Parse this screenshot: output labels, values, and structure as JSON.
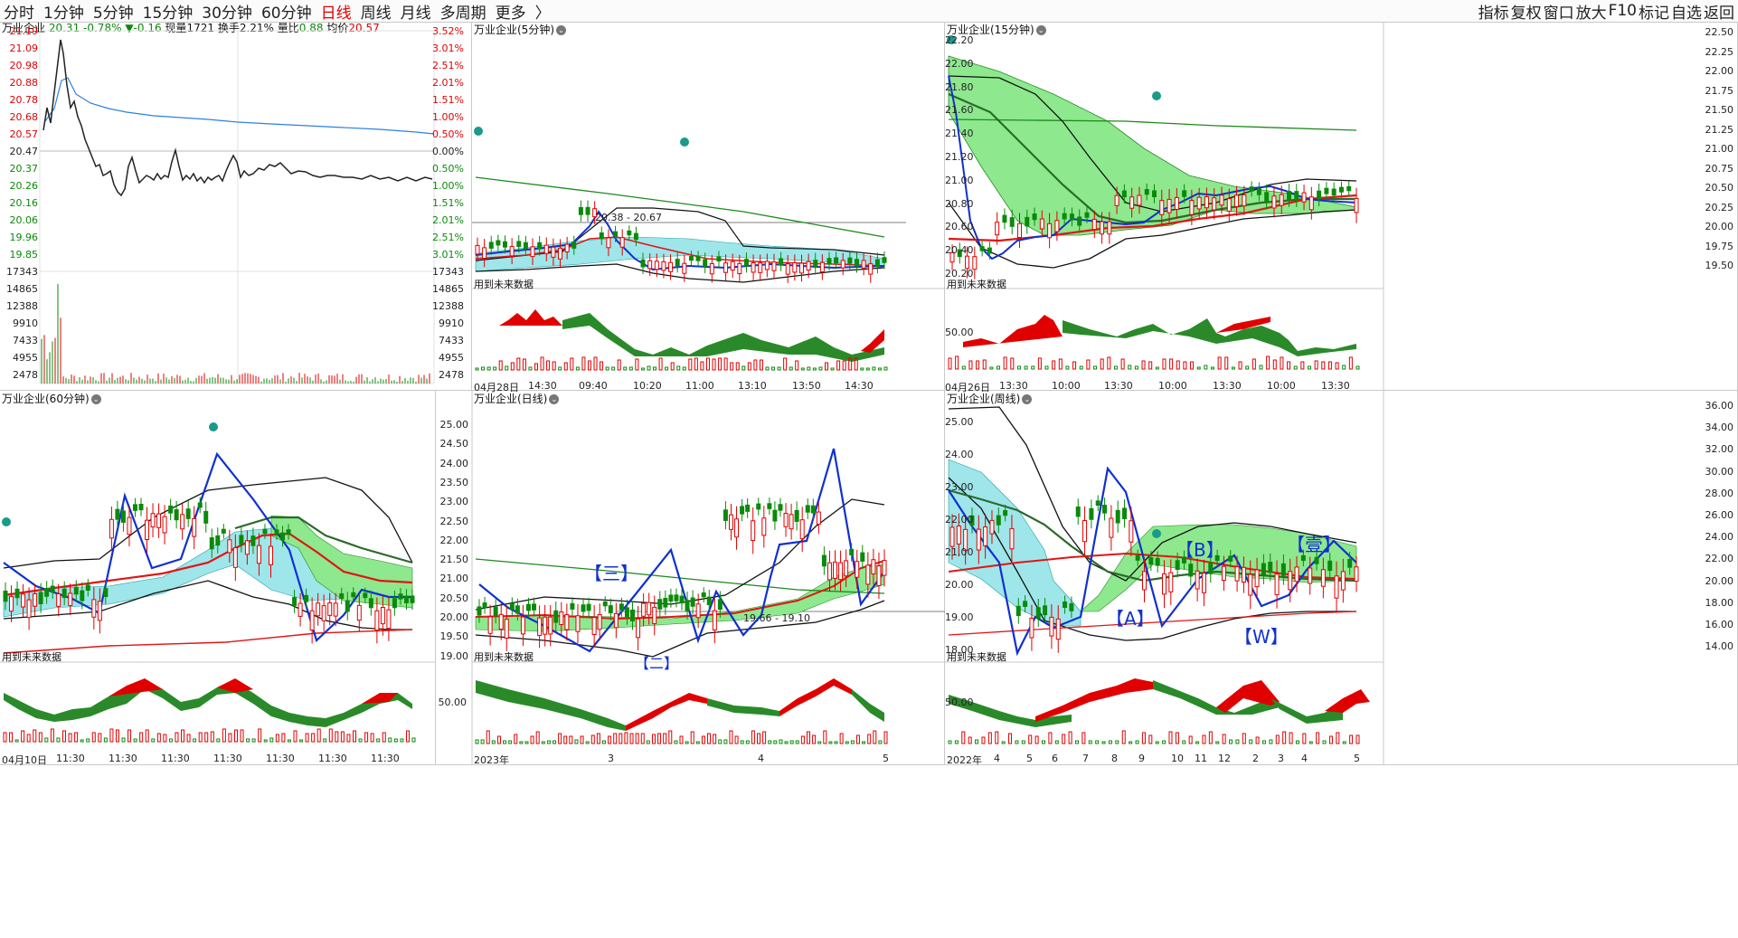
{
  "top_tabs": [
    "分时",
    "1分钟",
    "5分钟",
    "15分钟",
    "30分钟",
    "60分钟",
    "日线",
    "周线",
    "月线",
    "多周期",
    "更多",
    "〉"
  ],
  "active_tab": "日线",
  "tools": [
    "指标",
    "复权",
    "窗口",
    "放大",
    "F10",
    "标记",
    "自选",
    "返回"
  ],
  "intraday": {
    "stock": "万业企业",
    "price": "20.31",
    "change_pct": "-0.78%",
    "change": "▼-0.16",
    "volume_label": "现量",
    "volume": "1721",
    "turnover_label": "换手",
    "turnover": "2.21%",
    "ratio_label": "量比",
    "ratio": "0.88",
    "avg_label": "均价",
    "avg": "20.57",
    "price_ticks": [
      "21.19",
      "21.09",
      "20.98",
      "20.88",
      "20.78",
      "20.68",
      "20.57",
      "20.47",
      "20.37",
      "20.26",
      "20.16",
      "20.06",
      "19.96",
      "19.85"
    ],
    "pct_ticks": [
      "3.52%",
      "3.01%",
      "2.51%",
      "2.01%",
      "1.51%",
      "1.00%",
      "0.50%",
      "0.00%",
      "0.50%",
      "1.00%",
      "1.51%",
      "2.01%",
      "2.51%",
      "3.01%"
    ],
    "vol_ticks": [
      "17343",
      "14865",
      "12388",
      "9910",
      "7433",
      "4955",
      "2478"
    ]
  },
  "p5": {
    "title": "万业企业(5分钟)",
    "hint": "用到未来数据",
    "range_label": "20.38 - 20.67",
    "x_labels": [
      "04月28日",
      "14:30",
      "09:40",
      "10:20",
      "11:00",
      "13:10",
      "13:50",
      "14:30"
    ]
  },
  "p15": {
    "title": "万业企业(15分钟)",
    "hint": "用到未来数据",
    "left_ticks": [
      "22.20",
      "22.00",
      "21.80",
      "21.60",
      "21.40",
      "21.20",
      "21.00",
      "20.80",
      "20.60",
      "20.40",
      "20.20"
    ],
    "right_ticks": [
      "22.50",
      "22.25",
      "22.00",
      "21.75",
      "21.50",
      "21.25",
      "21.00",
      "20.75",
      "20.50",
      "20.25",
      "20.00",
      "19.75",
      "19.50"
    ],
    "osc_tick": "50.00",
    "x_labels": [
      "04月26日",
      "13:30",
      "10:00",
      "13:30",
      "10:00",
      "13:30",
      "10:00",
      "13:30"
    ]
  },
  "p60": {
    "title": "万业企业(60分钟)",
    "hint": "用到未来数据",
    "x_labels": [
      "04月10日",
      "11:30",
      "11:30",
      "11:30",
      "11:30",
      "11:30",
      "11:30",
      "11:30"
    ]
  },
  "pday": {
    "title": "万业企业(日线)",
    "hint": "用到未来数据",
    "ticks": [
      "25.00",
      "24.50",
      "24.00",
      "23.50",
      "23.00",
      "22.50",
      "22.00",
      "21.50",
      "21.00",
      "20.50",
      "20.00",
      "19.50",
      "19.00"
    ],
    "osc_tick": "50.00",
    "range_label": "19.66 - 19.10",
    "wave_label": "【三】",
    "wave_label2": "【二】",
    "x_labels": [
      "2023年",
      "3",
      "4",
      "5"
    ]
  },
  "pweek": {
    "title": "万业企业(周线)",
    "hint": "用到未来数据",
    "left_ticks": [
      "25.00",
      "24.00",
      "23.00",
      "22.00",
      "21.00",
      "20.00",
      "19.00",
      "18.00"
    ],
    "right_ticks": [
      "36.00",
      "34.00",
      "32.00",
      "30.00",
      "28.00",
      "26.00",
      "24.00",
      "22.00",
      "20.00",
      "18.00",
      "16.00",
      "14.00"
    ],
    "osc_tick": "50.00",
    "labels": [
      "【A】",
      "【B】",
      "【W】",
      "【壹】"
    ],
    "x_labels": [
      "2022年",
      "4",
      "5",
      "6",
      "7",
      "8",
      "9",
      "10",
      "11",
      "12",
      "2",
      "3",
      "4",
      "5"
    ]
  },
  "colors": {
    "up": "#e00000",
    "down": "#0a8a0a",
    "blue": "#1030d0",
    "cyan": "#8fe0e6",
    "lightgreen": "#8ee88e"
  }
}
